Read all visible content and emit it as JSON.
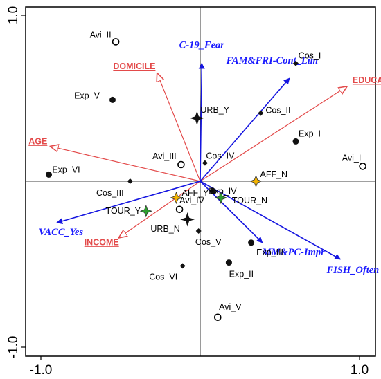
{
  "colors": {
    "supplementary_arrow": "#1515e0",
    "explanatory_arrow": "#e34a4a",
    "axis": "#000000",
    "affiliation_star": "#f4b400",
    "tourism_star": "#2e9d2e",
    "urban_star": "#111111"
  },
  "chart_data": {
    "type": "scatter",
    "title": "",
    "xlabel": "",
    "ylabel": "",
    "xlim": [
      -1.05,
      1.05
    ],
    "ylim": [
      -1.05,
      1.05
    ],
    "x_ticks": [
      -1.0,
      1.0
    ],
    "y_ticks": [
      1.0,
      -1.0
    ],
    "x_tick_labels": [
      "-1.0",
      "1.0"
    ],
    "y_tick_labels": [
      "1.0",
      "-1.0"
    ],
    "grid": false,
    "zero_lines": true,
    "supplementary_vectors": [
      {
        "label": "C-19_Fear",
        "x": 0.01,
        "y": 0.71
      },
      {
        "label": "FAM&FRI-Cont_Lim",
        "x": 0.56,
        "y": 0.62
      },
      {
        "label": "VACC_Yes",
        "x": -0.9,
        "y": -0.25
      },
      {
        "label": "MM&PC-Impr",
        "x": 0.39,
        "y": -0.37
      },
      {
        "label": "FISH_Often",
        "x": 0.88,
        "y": -0.47
      }
    ],
    "explanatory_vectors": [
      {
        "label": "DOMICILE",
        "x": -0.27,
        "y": 0.65
      },
      {
        "label": "EDUCATION",
        "x": 0.92,
        "y": 0.57
      },
      {
        "label": "AGE",
        "x": -0.94,
        "y": 0.21
      },
      {
        "label": "INCOME",
        "x": -0.51,
        "y": -0.34
      }
    ],
    "sample_points": [
      {
        "label": "Avi_II",
        "x": -0.53,
        "y": 0.84,
        "marker": "open-circle"
      },
      {
        "label": "Avi_III",
        "x": -0.12,
        "y": 0.1,
        "marker": "open-circle"
      },
      {
        "label": "Avi_IV",
        "x": -0.13,
        "y": -0.17,
        "marker": "open-circle"
      },
      {
        "label": "Avi_V",
        "x": 0.11,
        "y": -0.82,
        "marker": "open-circle"
      },
      {
        "label": "Avi_I",
        "x": 1.02,
        "y": 0.09,
        "marker": "open-circle"
      },
      {
        "label": "Exp_V",
        "x": -0.55,
        "y": 0.49,
        "marker": "dot"
      },
      {
        "label": "Exp_VI",
        "x": -0.95,
        "y": 0.04,
        "marker": "dot"
      },
      {
        "label": "Exp_I",
        "x": 0.6,
        "y": 0.24,
        "marker": "dot"
      },
      {
        "label": "Exp_IV",
        "x": 0.08,
        "y": -0.06,
        "marker": "dot"
      },
      {
        "label": "Exp_III",
        "x": 0.32,
        "y": -0.37,
        "marker": "dot"
      },
      {
        "label": "Exp_II",
        "x": 0.18,
        "y": -0.49,
        "marker": "dot"
      },
      {
        "label": "Cos_I",
        "x": 0.6,
        "y": 0.71,
        "marker": "diamond"
      },
      {
        "label": "Cos_II",
        "x": 0.38,
        "y": 0.41,
        "marker": "diamond"
      },
      {
        "label": "Cos_III",
        "x": -0.44,
        "y": 0.0,
        "marker": "diamond"
      },
      {
        "label": "Cos_IV",
        "x": 0.03,
        "y": 0.11,
        "marker": "diamond"
      },
      {
        "label": "Cos_V",
        "x": -0.01,
        "y": -0.3,
        "marker": "diamond"
      },
      {
        "label": "Cos_VI",
        "x": -0.11,
        "y": -0.51,
        "marker": "diamond"
      }
    ],
    "factor_centroids": [
      {
        "label": "URB_Y",
        "x": -0.02,
        "y": 0.38,
        "marker": "urban-star"
      },
      {
        "label": "URB_N",
        "x": -0.08,
        "y": -0.23,
        "marker": "urban-star"
      },
      {
        "label": "AFF_N",
        "x": 0.35,
        "y": 0.0,
        "marker": "affiliation-star"
      },
      {
        "label": "AFF_Y",
        "x": -0.15,
        "y": -0.1,
        "marker": "affiliation-star"
      },
      {
        "label": "TOUR_N",
        "x": 0.13,
        "y": -0.1,
        "marker": "tourism-star"
      },
      {
        "label": "TOUR_Y",
        "x": -0.34,
        "y": -0.18,
        "marker": "tourism-star"
      }
    ]
  }
}
